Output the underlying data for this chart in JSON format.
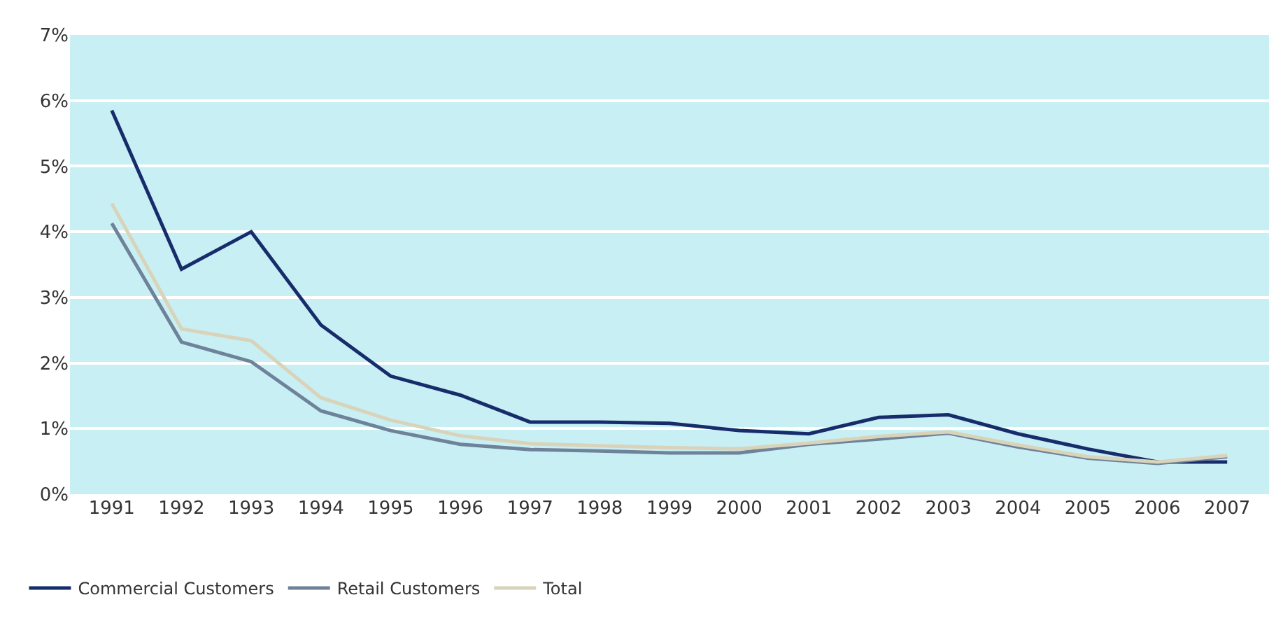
{
  "chart_data": {
    "type": "line",
    "categories": [
      "1991",
      "1992",
      "1993",
      "1994",
      "1995",
      "1996",
      "1997",
      "1998",
      "1999",
      "2000",
      "2001",
      "2002",
      "2003",
      "2004",
      "2005",
      "2006",
      "2007"
    ],
    "series": [
      {
        "name": "Commercial Customers",
        "color": "#172d6b",
        "values": [
          5.85,
          3.43,
          4.0,
          2.58,
          1.8,
          1.51,
          1.1,
          1.1,
          1.08,
          0.97,
          0.92,
          1.17,
          1.21,
          0.92,
          0.69,
          0.49,
          0.49
        ]
      },
      {
        "name": "Retail Customers",
        "color": "#6e8299",
        "values": [
          4.13,
          2.32,
          2.02,
          1.27,
          0.97,
          0.76,
          0.68,
          0.66,
          0.63,
          0.63,
          0.76,
          0.84,
          0.93,
          0.72,
          0.55,
          0.47,
          0.57
        ]
      },
      {
        "name": "Total",
        "color": "#d9d3b9",
        "values": [
          4.43,
          2.52,
          2.34,
          1.47,
          1.13,
          0.89,
          0.77,
          0.74,
          0.71,
          0.69,
          0.78,
          0.88,
          0.95,
          0.75,
          0.57,
          0.49,
          0.59
        ]
      }
    ],
    "ylim": [
      0,
      7
    ],
    "yticks": [
      {
        "value": 0,
        "label": "0%"
      },
      {
        "value": 1,
        "label": "1%"
      },
      {
        "value": 2,
        "label": "2%"
      },
      {
        "value": 3,
        "label": "3%"
      },
      {
        "value": 4,
        "label": "4%"
      },
      {
        "value": 5,
        "label": "5%"
      },
      {
        "value": 6,
        "label": "6%"
      },
      {
        "value": 7,
        "label": "7%"
      }
    ],
    "grid": "y",
    "legend": "bottom left",
    "marker": "none",
    "line_style": "solid"
  }
}
